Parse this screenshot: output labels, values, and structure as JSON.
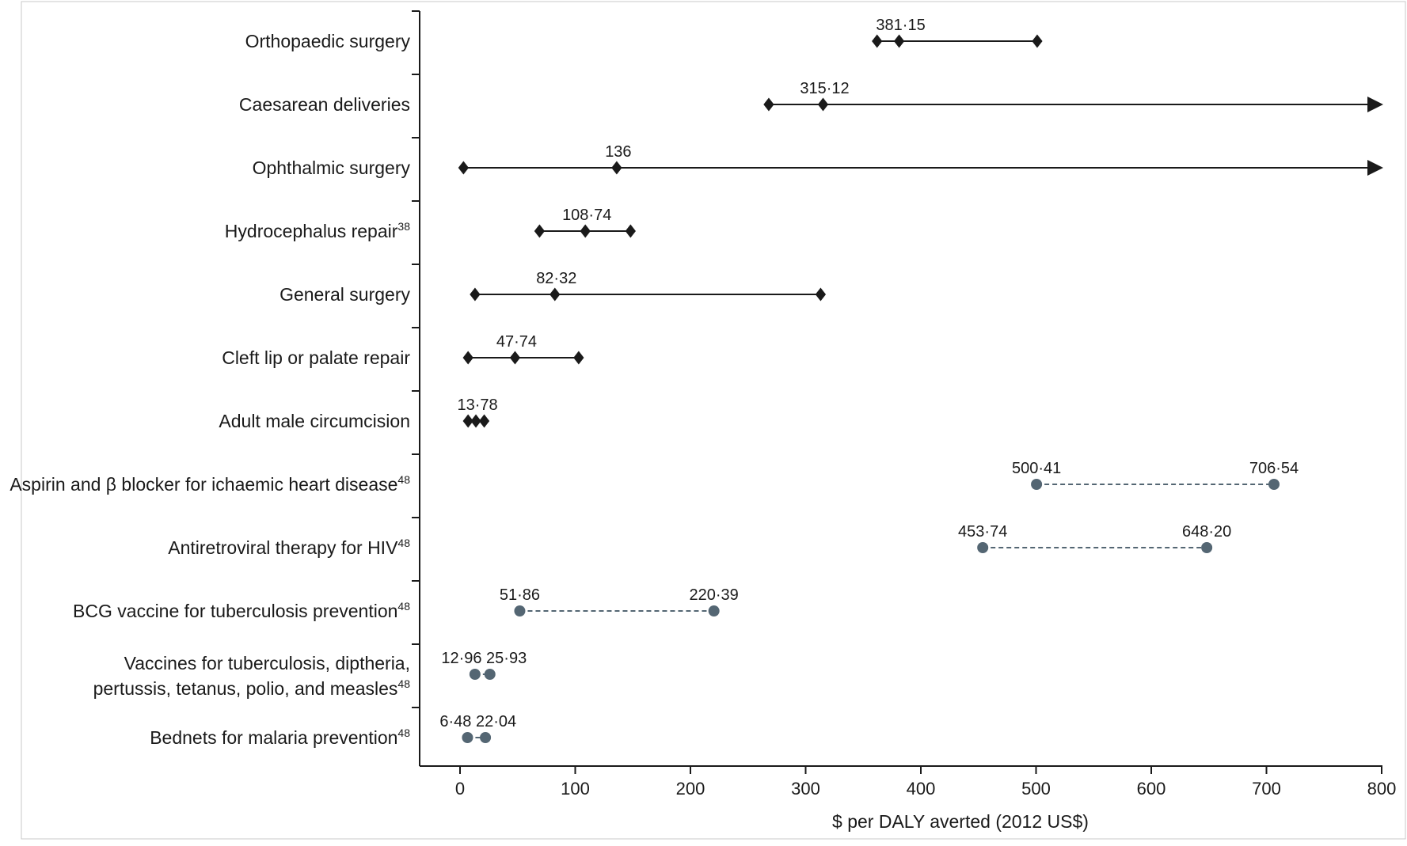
{
  "chart_data": {
    "type": "range-dot",
    "xlabel": "$ per DALY averted (2012 US$)",
    "xlim": [
      0,
      800
    ],
    "x_ticks": [
      0,
      100,
      200,
      300,
      400,
      500,
      600,
      700,
      800
    ],
    "rows": [
      {
        "label": "Orthopaedic surgery",
        "sup": "",
        "style": "surgical",
        "min": 362,
        "point": 381.15,
        "max": 501,
        "point_label": "381·15"
      },
      {
        "label": "Caesarean deliveries",
        "sup": "",
        "style": "surgical",
        "min": 268,
        "point": 315.12,
        "max": 800,
        "arrow": true,
        "point_label": "315·12"
      },
      {
        "label": "Ophthalmic surgery",
        "sup": "",
        "style": "surgical",
        "min": 3,
        "point": 136,
        "max": 800,
        "arrow": true,
        "point_label": "136"
      },
      {
        "label": "Hydrocephalus repair",
        "sup": "38",
        "style": "surgical",
        "min": 69,
        "point": 108.74,
        "max": 148,
        "point_label": "108·74"
      },
      {
        "label": "General surgery",
        "sup": "",
        "style": "surgical",
        "min": 13,
        "point": 82.32,
        "max": 313,
        "point_label": "82·32"
      },
      {
        "label": "Cleft lip or palate repair",
        "sup": "",
        "style": "surgical",
        "min": 7,
        "point": 47.74,
        "max": 103,
        "point_label": "47·74"
      },
      {
        "label": "Adult male circumcision",
        "sup": "",
        "style": "surgical",
        "min": 7,
        "point": 13.78,
        "max": 21,
        "point_label": "13·78"
      },
      {
        "label": "Aspirin and β blocker for ichaemic heart disease",
        "sup": "48",
        "style": "comparator",
        "min": 500.41,
        "max": 706.54,
        "min_label": "500·41",
        "max_label": "706·54"
      },
      {
        "label": "Antiretroviral therapy for HIV",
        "sup": "48",
        "style": "comparator",
        "min": 453.74,
        "max": 648.2,
        "min_label": "453·74",
        "max_label": "648·20"
      },
      {
        "label": "BCG vaccine for tuberculosis prevention",
        "sup": "48",
        "style": "comparator",
        "min": 51.86,
        "max": 220.39,
        "min_label": "51·86",
        "max_label": "220·39"
      },
      {
        "label": "Vaccines for tuberculosis, diptheria,",
        "label2": "pertussis, tetanus, polio, and measles",
        "sup": "48",
        "style": "comparator",
        "min": 12.96,
        "max": 25.93,
        "min_label": "12·96",
        "max_label": "25·93",
        "combined_label": "12·96 25·93"
      },
      {
        "label": "Bednets for malaria prevention",
        "sup": "48",
        "style": "comparator",
        "min": 6.48,
        "max": 22.04,
        "min_label": "6·48",
        "max_label": "22·04",
        "combined_label": "6·48 22·04"
      }
    ],
    "colors": {
      "surgical": "#1a1a1a",
      "comparator": "#546673",
      "axis": "#1a1a1a",
      "frame": "#c8c8c8"
    }
  }
}
